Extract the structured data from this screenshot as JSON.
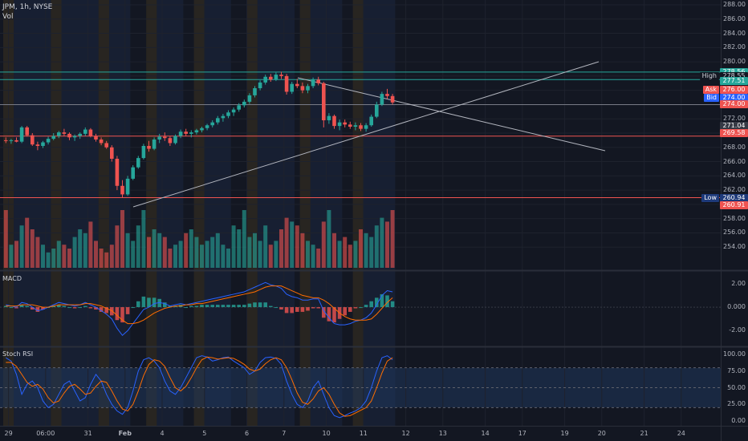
{
  "header": {
    "symbol_line": "JPM, 1h, NYSE",
    "vol_label": "Vol"
  },
  "colors": {
    "background": "#131722",
    "up": "#26a69a",
    "down": "#ef5350",
    "grid": "#1e222d",
    "us_session_band": "#1c2740",
    "pre_session_band": "#3b3120",
    "macd_line": "#2962ff",
    "signal_line": "#ff6d00",
    "rsi_band": "#1f3a5f"
  },
  "price_axis": {
    "min": 252,
    "max": 288,
    "labels": [
      "288.00",
      "286.00",
      "284.00",
      "282.00",
      "280.00",
      "278.00",
      "276.00",
      "274.00",
      "272.00",
      "270.00",
      "268.00",
      "266.00",
      "264.00",
      "262.00",
      "260.00",
      "258.00",
      "256.00",
      "254.00"
    ]
  },
  "price_tags": [
    {
      "name": "",
      "value": "278.56",
      "bg": "#26a69a",
      "fg": "#ffffff",
      "price": 278.56
    },
    {
      "name": "High",
      "value": "278.55",
      "bg": "#131722",
      "fg": "#d1d4dc",
      "price": 277.95
    },
    {
      "name": "",
      "value": "277.51",
      "bg": "#26a69a",
      "fg": "#ffffff",
      "price": 277.35
    },
    {
      "name": "Ask",
      "value": "276.00",
      "bg": "#ef5350",
      "fg": "#ffffff",
      "price": 276.05
    },
    {
      "name": "Bid",
      "value": "274.00",
      "bg": "#2962ff",
      "fg": "#ffffff",
      "price": 275.0
    },
    {
      "name": "",
      "value": "274.00",
      "bg": "#ef5350",
      "fg": "#ffffff",
      "price": 274.0
    },
    {
      "name": "",
      "value": "271.04",
      "bg": "#363a45",
      "fg": "#ffffff",
      "price": 271.0
    },
    {
      "name": "",
      "value": "269.58",
      "bg": "#ef5350",
      "fg": "#ffffff",
      "price": 270.0
    },
    {
      "name": "Low",
      "value": "260.94",
      "bg": "#1e3a7a",
      "fg": "#ffffff",
      "price": 260.94
    },
    {
      "name": "",
      "value": "260.91",
      "bg": "#ef5350",
      "fg": "#ffffff",
      "price": 259.9
    }
  ],
  "horizontal_levels": [
    {
      "price": 278.56,
      "color": "#26a69a"
    },
    {
      "price": 277.51,
      "color": "#26a69a"
    },
    {
      "price": 274.0,
      "color": "#787b86"
    },
    {
      "price": 269.58,
      "color": "#ef5350"
    },
    {
      "price": 260.94,
      "color": "#ef5350"
    }
  ],
  "macd": {
    "title": "MACD",
    "min": -3.2,
    "max": 2.8,
    "labels": [
      "2.00",
      "0.000",
      "-2.00"
    ],
    "label_values": [
      2,
      0,
      -2
    ]
  },
  "stoch": {
    "title": "Stoch RSI",
    "labels": [
      "100.00",
      "75.00",
      "50.00",
      "25.00",
      "0.00"
    ],
    "label_values": [
      100,
      75,
      50,
      25,
      0
    ]
  },
  "time_axis": {
    "labels": [
      {
        "text": "29",
        "bar": 1
      },
      {
        "text": "06:00",
        "bar": 8
      },
      {
        "text": "31",
        "bar": 16
      },
      {
        "text": "Feb",
        "bar": 23
      },
      {
        "text": "4",
        "bar": 30
      },
      {
        "text": "5",
        "bar": 38
      },
      {
        "text": "6",
        "bar": 46
      },
      {
        "text": "7",
        "bar": 53
      },
      {
        "text": "10",
        "bar": 61
      },
      {
        "text": "11",
        "bar": 68
      },
      {
        "text": "12",
        "bar": 76
      },
      {
        "text": "13",
        "bar": 83
      },
      {
        "text": "14",
        "bar": 91
      },
      {
        "text": "17",
        "bar": 98
      },
      {
        "text": "19",
        "bar": 106
      },
      {
        "text": "20",
        "bar": 113
      },
      {
        "text": "21",
        "bar": 121
      },
      {
        "text": "24",
        "bar": 128
      }
    ]
  },
  "chart_data": {
    "type": "candlestick",
    "candles": [
      [
        269.0,
        269.4,
        268.6,
        268.9
      ],
      [
        268.9,
        269.2,
        268.5,
        269.0
      ],
      [
        269.0,
        269.4,
        268.7,
        268.8
      ],
      [
        268.8,
        271.0,
        268.6,
        270.8
      ],
      [
        270.8,
        271.0,
        269.5,
        269.7
      ],
      [
        269.7,
        270.0,
        268.2,
        268.4
      ],
      [
        268.4,
        268.8,
        267.6,
        268.2
      ],
      [
        268.2,
        268.9,
        267.9,
        268.7
      ],
      [
        268.7,
        269.5,
        268.4,
        269.2
      ],
      [
        269.2,
        270.0,
        269.0,
        269.6
      ],
      [
        269.6,
        270.3,
        269.3,
        270.1
      ],
      [
        270.1,
        270.6,
        269.6,
        269.9
      ],
      [
        269.9,
        270.1,
        269.0,
        269.4
      ],
      [
        269.4,
        269.8,
        268.9,
        269.6
      ],
      [
        269.6,
        270.1,
        269.2,
        269.9
      ],
      [
        269.9,
        270.8,
        269.6,
        270.5
      ],
      [
        270.5,
        270.7,
        269.4,
        269.6
      ],
      [
        269.6,
        269.9,
        268.8,
        269.1
      ],
      [
        269.1,
        269.4,
        268.3,
        268.6
      ],
      [
        268.6,
        268.9,
        267.8,
        268.0
      ],
      [
        268.0,
        268.3,
        266.0,
        266.4
      ],
      [
        266.4,
        266.8,
        262.0,
        262.6
      ],
      [
        262.6,
        263.4,
        261.0,
        261.4
      ],
      [
        261.4,
        264.0,
        261.2,
        263.6
      ],
      [
        263.6,
        265.5,
        263.4,
        265.2
      ],
      [
        265.2,
        266.8,
        265.0,
        266.5
      ],
      [
        266.5,
        268.5,
        266.3,
        268.2
      ],
      [
        268.2,
        268.9,
        267.4,
        267.8
      ],
      [
        267.8,
        269.4,
        267.6,
        269.1
      ],
      [
        269.1,
        269.9,
        268.6,
        269.5
      ],
      [
        269.5,
        270.1,
        268.9,
        269.3
      ],
      [
        269.3,
        269.6,
        268.2,
        268.6
      ],
      [
        268.6,
        269.8,
        268.4,
        269.6
      ],
      [
        269.6,
        270.5,
        269.3,
        270.2
      ],
      [
        270.2,
        270.6,
        269.6,
        269.9
      ],
      [
        269.9,
        270.4,
        269.4,
        270.1
      ],
      [
        270.1,
        270.6,
        269.8,
        270.4
      ],
      [
        270.4,
        270.9,
        270.1,
        270.7
      ],
      [
        270.7,
        271.3,
        270.4,
        271.1
      ],
      [
        271.1,
        271.8,
        270.8,
        271.5
      ],
      [
        271.5,
        272.4,
        271.2,
        272.1
      ],
      [
        272.1,
        272.7,
        271.6,
        272.4
      ],
      [
        272.4,
        273.2,
        272.1,
        272.9
      ],
      [
        272.9,
        273.6,
        272.4,
        273.3
      ],
      [
        273.3,
        274.2,
        273.0,
        273.9
      ],
      [
        273.9,
        274.7,
        273.6,
        274.4
      ],
      [
        274.4,
        275.6,
        274.1,
        275.3
      ],
      [
        275.3,
        276.6,
        275.0,
        276.3
      ],
      [
        276.3,
        277.4,
        276.0,
        277.1
      ],
      [
        277.1,
        278.2,
        276.8,
        277.9
      ],
      [
        277.9,
        278.3,
        277.2,
        277.5
      ],
      [
        277.5,
        278.5,
        277.3,
        278.2
      ],
      [
        278.2,
        278.6,
        277.6,
        278.0
      ],
      [
        278.0,
        278.3,
        275.4,
        275.8
      ],
      [
        275.8,
        277.2,
        275.5,
        276.9
      ],
      [
        276.9,
        277.6,
        276.3,
        276.6
      ],
      [
        276.6,
        277.1,
        275.6,
        276.0
      ],
      [
        276.0,
        276.9,
        275.6,
        276.6
      ],
      [
        276.6,
        277.8,
        276.3,
        277.5
      ],
      [
        277.5,
        277.9,
        276.7,
        277.0
      ],
      [
        277.0,
        277.2,
        270.8,
        271.8
      ],
      [
        271.8,
        272.8,
        271.3,
        272.4
      ],
      [
        272.4,
        272.6,
        270.6,
        271.0
      ],
      [
        271.0,
        271.9,
        270.4,
        271.5
      ],
      [
        271.5,
        271.9,
        270.8,
        271.2
      ],
      [
        271.2,
        271.6,
        270.6,
        270.9
      ],
      [
        270.9,
        271.5,
        270.4,
        271.1
      ],
      [
        271.1,
        271.4,
        270.3,
        270.6
      ],
      [
        270.6,
        271.4,
        270.2,
        271.1
      ],
      [
        271.1,
        272.6,
        270.9,
        272.3
      ],
      [
        272.3,
        274.4,
        272.1,
        274.0
      ],
      [
        274.0,
        275.8,
        273.8,
        275.5
      ],
      [
        275.5,
        276.2,
        274.8,
        275.2
      ],
      [
        275.2,
        275.5,
        274.0,
        274.3
      ]
    ],
    "volumes": [
      30,
      12,
      14,
      22,
      26,
      20,
      16,
      12,
      8,
      10,
      14,
      12,
      10,
      16,
      20,
      18,
      24,
      14,
      10,
      8,
      12,
      22,
      30,
      18,
      14,
      22,
      30,
      16,
      20,
      18,
      16,
      10,
      12,
      14,
      18,
      20,
      16,
      12,
      14,
      16,
      18,
      12,
      10,
      22,
      20,
      30,
      16,
      18,
      14,
      22,
      12,
      14,
      20,
      26,
      24,
      22,
      18,
      14,
      12,
      10,
      24,
      30,
      18,
      14,
      16,
      12,
      14,
      20,
      18,
      16,
      22,
      26,
      24,
      30
    ],
    "macd": [
      0.2,
      0.1,
      0.0,
      0.4,
      0.3,
      0.0,
      -0.3,
      -0.2,
      0.0,
      0.2,
      0.4,
      0.3,
      0.2,
      0.1,
      0.2,
      0.4,
      0.2,
      0.0,
      -0.3,
      -0.6,
      -1.0,
      -1.8,
      -2.4,
      -2.0,
      -1.4,
      -0.8,
      -0.2,
      0.0,
      0.3,
      0.4,
      0.3,
      0.1,
      0.2,
      0.3,
      0.2,
      0.3,
      0.4,
      0.5,
      0.6,
      0.7,
      0.8,
      0.9,
      1.0,
      1.1,
      1.2,
      1.3,
      1.5,
      1.7,
      1.9,
      2.1,
      1.9,
      1.8,
      1.6,
      1.1,
      0.9,
      0.8,
      0.6,
      0.6,
      0.7,
      0.7,
      -0.3,
      -0.9,
      -1.4,
      -1.5,
      -1.5,
      -1.4,
      -1.2,
      -1.1,
      -0.9,
      -0.5,
      0.2,
      1.0,
      1.4,
      1.3
    ],
    "signal": [
      0.1,
      0.1,
      0.1,
      0.2,
      0.2,
      0.2,
      0.1,
      0.0,
      0.0,
      0.1,
      0.2,
      0.2,
      0.2,
      0.2,
      0.2,
      0.3,
      0.3,
      0.2,
      0.1,
      -0.1,
      -0.3,
      -0.7,
      -1.1,
      -1.4,
      -1.4,
      -1.3,
      -1.1,
      -0.8,
      -0.5,
      -0.3,
      -0.1,
      0.0,
      0.1,
      0.1,
      0.2,
      0.2,
      0.3,
      0.3,
      0.4,
      0.5,
      0.6,
      0.7,
      0.8,
      0.9,
      1.0,
      1.1,
      1.2,
      1.3,
      1.5,
      1.7,
      1.8,
      1.8,
      1.8,
      1.6,
      1.4,
      1.2,
      1.0,
      0.9,
      0.8,
      0.8,
      0.6,
      0.3,
      -0.1,
      -0.5,
      -0.8,
      -1.0,
      -1.1,
      -1.1,
      -1.1,
      -1.0,
      -0.6,
      -0.1,
      0.4,
      0.8
    ],
    "stoch_k": [
      95,
      90,
      70,
      40,
      55,
      60,
      50,
      30,
      20,
      25,
      40,
      55,
      60,
      45,
      30,
      35,
      55,
      70,
      60,
      40,
      25,
      15,
      10,
      20,
      45,
      75,
      92,
      95,
      90,
      80,
      60,
      45,
      40,
      50,
      65,
      80,
      95,
      98,
      96,
      90,
      92,
      95,
      96,
      90,
      85,
      80,
      70,
      75,
      88,
      95,
      96,
      94,
      85,
      60,
      40,
      25,
      20,
      30,
      50,
      60,
      40,
      20,
      8,
      5,
      8,
      12,
      15,
      20,
      30,
      50,
      75,
      95,
      98,
      92
    ],
    "stoch_d": [
      88,
      88,
      82,
      70,
      58,
      52,
      55,
      48,
      35,
      27,
      30,
      42,
      52,
      55,
      48,
      40,
      42,
      52,
      60,
      58,
      45,
      30,
      18,
      15,
      25,
      45,
      68,
      85,
      92,
      90,
      82,
      65,
      50,
      45,
      52,
      65,
      80,
      92,
      96,
      95,
      93,
      94,
      95,
      94,
      90,
      85,
      78,
      75,
      78,
      86,
      92,
      95,
      92,
      80,
      62,
      42,
      28,
      25,
      33,
      45,
      50,
      40,
      25,
      12,
      7,
      8,
      12,
      16,
      20,
      30,
      50,
      72,
      90,
      95
    ]
  }
}
